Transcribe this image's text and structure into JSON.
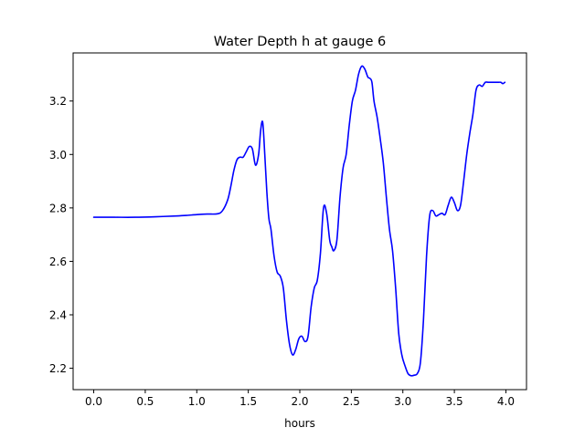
{
  "chart_data": {
    "type": "line",
    "title": "Water Depth h at gauge 6",
    "xlabel": "hours",
    "ylabel": "",
    "xlim": [
      -0.2,
      4.2
    ],
    "ylim": [
      2.12,
      3.38
    ],
    "xticks": [
      0.0,
      0.5,
      1.0,
      1.5,
      2.0,
      2.5,
      3.0,
      3.5,
      4.0
    ],
    "xtick_labels": [
      "0.0",
      "0.5",
      "1.0",
      "1.5",
      "2.0",
      "2.5",
      "3.0",
      "3.5",
      "4.0"
    ],
    "yticks": [
      2.2,
      2.4,
      2.6,
      2.8,
      3.0,
      3.2
    ],
    "ytick_labels": [
      "2.2",
      "2.4",
      "2.6",
      "2.8",
      "3.0",
      "3.2"
    ],
    "grid": false,
    "legend": "none",
    "series": [
      {
        "color": "#0000ff",
        "x": [
          0.0,
          0.2,
          0.4,
          0.6,
          0.8,
          0.9,
          1.0,
          1.1,
          1.2,
          1.25,
          1.3,
          1.33,
          1.36,
          1.39,
          1.42,
          1.45,
          1.48,
          1.51,
          1.54,
          1.57,
          1.6,
          1.62,
          1.64,
          1.66,
          1.68,
          1.7,
          1.72,
          1.75,
          1.78,
          1.81,
          1.84,
          1.87,
          1.9,
          1.93,
          1.96,
          1.99,
          2.02,
          2.05,
          2.08,
          2.11,
          2.14,
          2.17,
          2.2,
          2.23,
          2.26,
          2.29,
          2.31,
          2.33,
          2.36,
          2.39,
          2.42,
          2.45,
          2.48,
          2.51,
          2.54,
          2.57,
          2.6,
          2.63,
          2.66,
          2.68,
          2.7,
          2.72,
          2.75,
          2.78,
          2.81,
          2.84,
          2.87,
          2.9,
          2.93,
          2.96,
          2.99,
          3.02,
          3.05,
          3.08,
          3.11,
          3.14,
          3.17,
          3.2,
          3.23,
          3.26,
          3.29,
          3.32,
          3.35,
          3.38,
          3.41,
          3.44,
          3.47,
          3.5,
          3.53,
          3.56,
          3.59,
          3.62,
          3.65,
          3.68,
          3.71,
          3.74,
          3.77,
          3.8,
          3.83,
          3.86,
          3.89,
          3.92,
          3.95,
          3.97,
          3.99
        ],
        "values": [
          2.765,
          2.765,
          2.765,
          2.767,
          2.77,
          2.772,
          2.775,
          2.777,
          2.778,
          2.79,
          2.83,
          2.88,
          2.94,
          2.98,
          2.99,
          2.99,
          3.01,
          3.03,
          3.02,
          2.96,
          3.0,
          3.09,
          3.12,
          3.0,
          2.86,
          2.76,
          2.72,
          2.62,
          2.56,
          2.545,
          2.5,
          2.38,
          2.29,
          2.25,
          2.27,
          2.31,
          2.32,
          2.3,
          2.32,
          2.43,
          2.5,
          2.53,
          2.63,
          2.8,
          2.78,
          2.68,
          2.655,
          2.64,
          2.68,
          2.84,
          2.95,
          3.0,
          3.11,
          3.2,
          3.24,
          3.3,
          3.33,
          3.32,
          3.29,
          3.285,
          3.27,
          3.2,
          3.14,
          3.06,
          2.97,
          2.84,
          2.72,
          2.64,
          2.5,
          2.33,
          2.25,
          2.21,
          2.18,
          2.172,
          2.174,
          2.18,
          2.22,
          2.38,
          2.62,
          2.77,
          2.79,
          2.77,
          2.775,
          2.78,
          2.775,
          2.81,
          2.84,
          2.82,
          2.79,
          2.81,
          2.9,
          3.0,
          3.08,
          3.15,
          3.24,
          3.26,
          3.255,
          3.27,
          3.27,
          3.27,
          3.27,
          3.27,
          3.27,
          3.265,
          3.27
        ]
      }
    ]
  }
}
